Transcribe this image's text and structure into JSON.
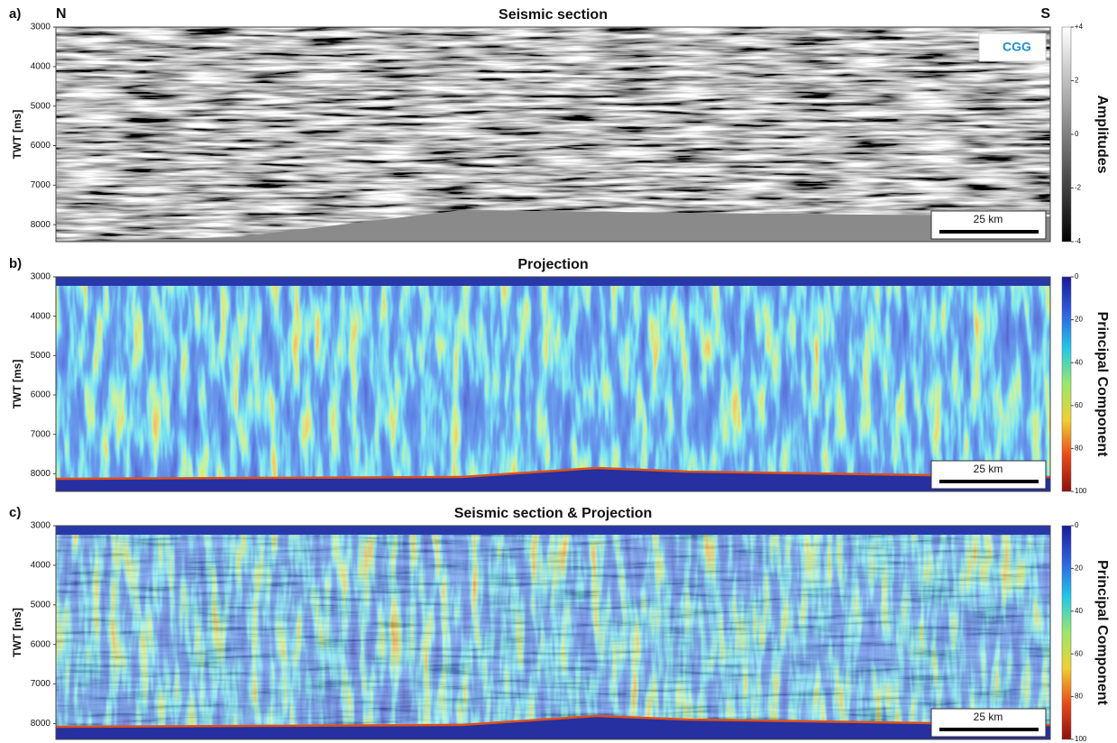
{
  "chart_data": [
    {
      "type": "image",
      "panel_label": "a)",
      "title": "Seismic section",
      "left_label": "N",
      "right_label": "S",
      "logo": "CGG",
      "y_label": "TWT [ms]",
      "ylim": [
        3000,
        8430
      ],
      "yticks": [
        3000,
        4000,
        5000,
        6000,
        7000,
        8000
      ],
      "colorbar_label": "Amplitudes",
      "clim": [
        4,
        -4
      ],
      "cticks": [
        {
          "value": 4,
          "label": "+4"
        },
        2,
        0,
        -2,
        -4
      ],
      "colormap": [
        "#ffffff",
        "#000000"
      ],
      "scale_bar": "25 km"
    },
    {
      "type": "image",
      "panel_label": "b)",
      "title": "Projection",
      "y_label": "TWT [ms]",
      "ylim": [
        3000,
        8450
      ],
      "yticks": [
        3000,
        4000,
        5000,
        6000,
        7000,
        8000
      ],
      "colorbar_label": "Principal Component",
      "clim": [
        0,
        100
      ],
      "cticks": [
        0,
        20,
        40,
        60,
        80,
        100
      ],
      "colormap": [
        "#1a1a96",
        "#2f5fe0",
        "#22c8e8",
        "#9be86a",
        "#f0d030",
        "#e84a1a",
        "#8a1010"
      ],
      "scale_bar": "25 km"
    },
    {
      "type": "image",
      "panel_label": "c)",
      "title": "Seismic section & Projection",
      "y_label": "TWT [ms]",
      "ylim": [
        3000,
        8400
      ],
      "yticks": [
        3000,
        4000,
        5000,
        6000,
        7000,
        8000
      ],
      "colorbar_label": "Principal Component",
      "clim": [
        0,
        100
      ],
      "cticks": [
        0,
        20,
        40,
        60,
        80,
        100
      ],
      "colormap": [
        "#1a1a96",
        "#2f5fe0",
        "#22c8e8",
        "#9be86a",
        "#f0d030",
        "#e84a1a",
        "#8a1010"
      ],
      "scale_bar": "25 km"
    }
  ]
}
